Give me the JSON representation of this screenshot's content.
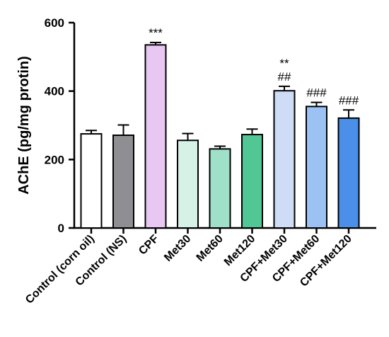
{
  "chart_data": {
    "type": "bar",
    "ylabel": "AChE (pg/mg protin)",
    "ylim": [
      0,
      600
    ],
    "yticks": [
      "0",
      "200",
      "400",
      "600"
    ],
    "categories": [
      "Control (corn oil)",
      "Control (NS)",
      "CPF",
      "Met30",
      "Met60",
      "Met120",
      "CPF+Met30",
      "CPF+Met60",
      "CPF+Met120"
    ],
    "values": [
      275,
      271,
      535,
      256,
      231,
      273,
      401,
      355,
      321
    ],
    "errors": [
      10,
      30,
      7,
      20,
      8,
      16,
      13,
      12,
      24
    ],
    "colors": [
      "#ffffff",
      "#8f8f93",
      "#e8c8f2",
      "#d6f2e6",
      "#9fe0c8",
      "#52c796",
      "#cfdcf7",
      "#9cc2f3",
      "#4b8fe8"
    ],
    "annotations": [
      {
        "category": "CPF",
        "lines": [
          "***"
        ]
      },
      {
        "category": "CPF+Met30",
        "lines": [
          "**",
          "##"
        ]
      },
      {
        "category": "CPF+Met60",
        "lines": [
          "###"
        ]
      },
      {
        "category": "CPF+Met120",
        "lines": [
          "###"
        ]
      }
    ],
    "grid": false,
    "legend": "none"
  }
}
